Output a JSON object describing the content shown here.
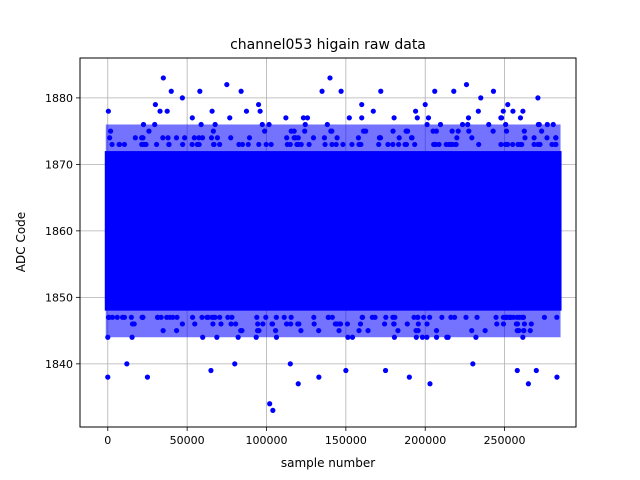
{
  "chart_data": {
    "type": "scatter",
    "title": "channel053 higain raw data",
    "xlabel": "sample number",
    "ylabel": "ADC Code",
    "xlim": [
      -17500,
      295000
    ],
    "ylim": [
      1830.5,
      1886
    ],
    "xticks": [
      0,
      50000,
      100000,
      150000,
      200000,
      250000
    ],
    "yticks": [
      1840,
      1850,
      1860,
      1870,
      1880
    ],
    "grid": true,
    "marker_color": "#0000ff",
    "series": [
      {
        "band": {
          "x_range": [
            0,
            284000
          ],
          "dense_y_range": [
            1848,
            1872
          ],
          "scattered_y_range": [
            1844,
            1876
          ]
        },
        "points": [
          [
            0,
            1838
          ],
          [
            25000,
            1838
          ],
          [
            47000,
            1880
          ],
          [
            35000,
            1883
          ],
          [
            40000,
            1881
          ],
          [
            58000,
            1881
          ],
          [
            75000,
            1882
          ],
          [
            84000,
            1881
          ],
          [
            65000,
            1839
          ],
          [
            102000,
            1834
          ],
          [
            104000,
            1833
          ],
          [
            120000,
            1837
          ],
          [
            133000,
            1838
          ],
          [
            140000,
            1883
          ],
          [
            135000,
            1881
          ],
          [
            147000,
            1881
          ],
          [
            150000,
            1839
          ],
          [
            172000,
            1881
          ],
          [
            175000,
            1839
          ],
          [
            190000,
            1838
          ],
          [
            203000,
            1837
          ],
          [
            206000,
            1881
          ],
          [
            218000,
            1881
          ],
          [
            226000,
            1882
          ],
          [
            235000,
            1880
          ],
          [
            243000,
            1881
          ],
          [
            258000,
            1839
          ],
          [
            265000,
            1837
          ],
          [
            271000,
            1880
          ],
          [
            283000,
            1838
          ],
          [
            30000,
            1879
          ],
          [
            95000,
            1879
          ],
          [
            160000,
            1879
          ],
          [
            200000,
            1879
          ],
          [
            252000,
            1879
          ],
          [
            12000,
            1840
          ],
          [
            80000,
            1840
          ],
          [
            115000,
            1840
          ],
          [
            230000,
            1840
          ],
          [
            270000,
            1839
          ]
        ]
      }
    ]
  }
}
